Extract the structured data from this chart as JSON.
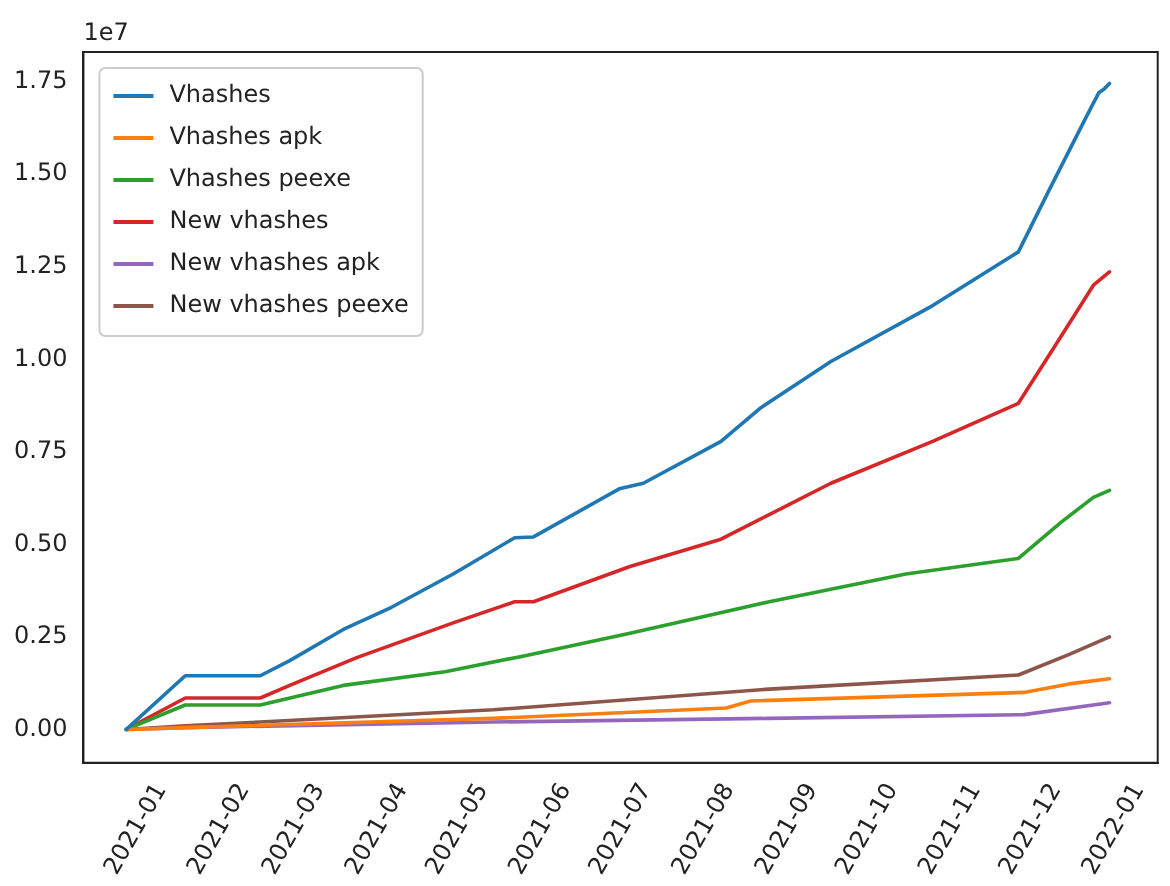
{
  "chart_data": {
    "type": "line",
    "xlim": [
      "2020-12-03",
      "2022-01-08"
    ],
    "xticks": [
      "2021-01",
      "2021-02",
      "2021-03",
      "2021-04",
      "2021-05",
      "2021-06",
      "2021-07",
      "2021-08",
      "2021-09",
      "2021-10",
      "2021-11",
      "2021-12",
      "2022-01"
    ],
    "ylim": [
      -0.09,
      1.83
    ],
    "yticks": [
      {
        "value": 0,
        "label": "0.00"
      },
      {
        "value": 0.25,
        "label": "0.25"
      },
      {
        "value": 0.5,
        "label": "0.50"
      },
      {
        "value": 0.75,
        "label": "0.75"
      },
      {
        "value": 1,
        "label": "1.00"
      },
      {
        "value": 1.25,
        "label": "1.25"
      },
      {
        "value": 1.5,
        "label": "1.50"
      },
      {
        "value": 1.75,
        "label": "1.75"
      }
    ],
    "annotations": [
      "1e7"
    ],
    "legend": "top left",
    "grid": false,
    "marker": "none",
    "line_style": "solid",
    "series": [
      {
        "name": "Vhashes",
        "color": "#1f77b4",
        "x": [
          "2020-12-19",
          "2021-01-10",
          "2021-02-07",
          "2021-02-18",
          "2021-03-10",
          "2021-03-28",
          "2021-04-20",
          "2021-05-13",
          "2021-05-20",
          "2021-06-21",
          "2021-06-30",
          "2021-07-29",
          "2021-08-13",
          "2021-09-08",
          "2021-10-16",
          "2021-11-17",
          "2021-11-28",
          "2021-12-05",
          "2021-12-12",
          "2021-12-17",
          "2021-12-19",
          "2021-12-21"
        ],
        "values": [
          0,
          0.145,
          0.145,
          0.186,
          0.27,
          0.33,
          0.42,
          0.518,
          0.52,
          0.65,
          0.665,
          0.778,
          0.87,
          0.994,
          1.145,
          1.29,
          1.45,
          1.55,
          1.65,
          1.72,
          1.73,
          1.745
        ]
      },
      {
        "name": "Vhashes apk",
        "color": "#ff7f0e",
        "x": [
          "2020-12-19",
          "2021-01-10",
          "2021-05-05",
          "2021-07-31",
          "2021-08-09",
          "2021-11-19",
          "2021-12-06",
          "2021-12-21"
        ],
        "values": [
          0,
          0.005,
          0.03,
          0.058,
          0.077,
          0.1,
          0.123,
          0.137
        ]
      },
      {
        "name": "Vhashes peexe",
        "color": "#2ca02c",
        "x": [
          "2020-12-19",
          "2021-01-10",
          "2021-02-07",
          "2021-03-10",
          "2021-04-17",
          "2021-05-16",
          "2021-06-25",
          "2021-08-16",
          "2021-10-06",
          "2021-11-17",
          "2021-12-03",
          "2021-12-15",
          "2021-12-21"
        ],
        "values": [
          0,
          0.066,
          0.066,
          0.119,
          0.156,
          0.198,
          0.26,
          0.345,
          0.42,
          0.462,
          0.56,
          0.627,
          0.646
        ]
      },
      {
        "name": "New vhashes",
        "color": "#d62728",
        "x": [
          "2020-12-19",
          "2021-01-10",
          "2021-02-07",
          "2021-02-18",
          "2021-03-15",
          "2021-04-20",
          "2021-05-13",
          "2021-05-20",
          "2021-06-25",
          "2021-07-29",
          "2021-09-08",
          "2021-10-16",
          "2021-11-17",
          "2021-12-01",
          "2021-12-15",
          "2021-12-21"
        ],
        "values": [
          0,
          0.085,
          0.085,
          0.119,
          0.194,
          0.288,
          0.345,
          0.345,
          0.44,
          0.514,
          0.665,
          0.778,
          0.881,
          1.04,
          1.2,
          1.236
        ]
      },
      {
        "name": "New vhashes apk",
        "color": "#9467bd",
        "x": [
          "2020-12-19",
          "2021-01-10",
          "2021-05-05",
          "2021-08-16",
          "2021-11-19",
          "2021-12-21"
        ],
        "values": [
          0,
          0.005,
          0.02,
          0.03,
          0.04,
          0.072
        ]
      },
      {
        "name": "New vhashes peexe",
        "color": "#8c564b",
        "x": [
          "2020-12-19",
          "2021-01-10",
          "2021-02-07",
          "2021-05-05",
          "2021-08-16",
          "2021-11-17",
          "2021-12-06",
          "2021-12-21"
        ],
        "values": [
          0,
          0.01,
          0.02,
          0.053,
          0.109,
          0.147,
          0.203,
          0.25
        ]
      }
    ]
  }
}
